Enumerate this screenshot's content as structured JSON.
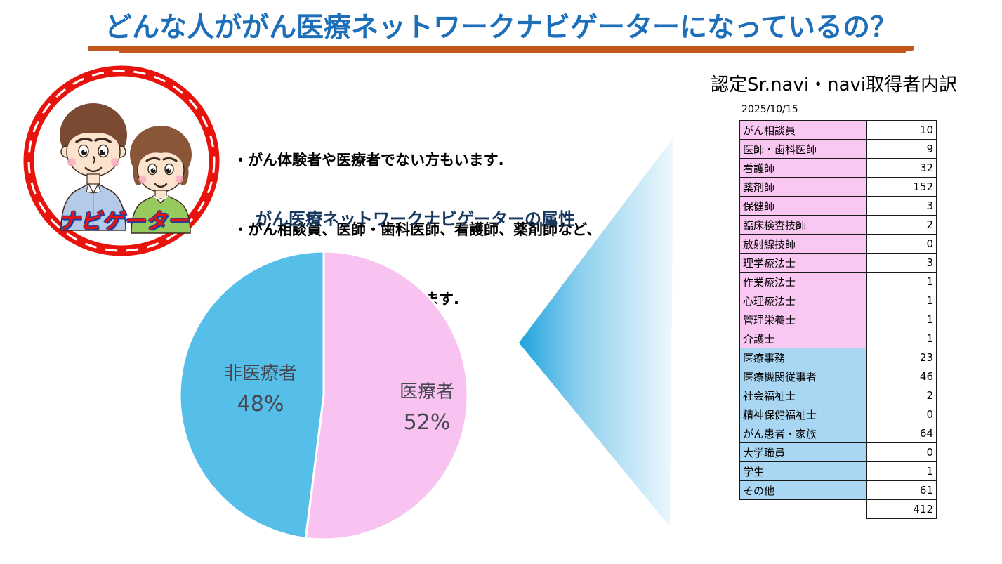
{
  "header": {
    "title": "どんな人ががん医療ネットワークナビゲーターになっているの？",
    "accent_rule_color": "#c2561c",
    "title_color": "#1c6fb8"
  },
  "badge": {
    "label": "ナビゲーター",
    "ring_color": "#e8130c"
  },
  "intro": {
    "lines": [
      "・がん体験者や医療者でない方もいます.",
      "・がん相談員、医師・歯科医師、看護師、薬剤師など、",
      "　様々な職種の方がなっています."
    ]
  },
  "chart_data": [
    {
      "type": "pie",
      "title": "がん医療ネットワークナビゲーターの属性",
      "start": "top",
      "direction": "clockwise",
      "slices": [
        {
          "label": "医療者",
          "value": 52,
          "pct_label": "52%",
          "color": "#f8c3f0"
        },
        {
          "label": "非医療者",
          "value": 48,
          "pct_label": "48%",
          "color": "#56bfe9"
        }
      ],
      "label_color": "#47474f",
      "legend_position": "inside"
    },
    {
      "type": "table",
      "title": "認定Sr.navi・navi取得者内訳",
      "date": "2025/10/15",
      "group_colors": {
        "medical": "#fac6f2",
        "nonmedical": "#a9d6f2"
      },
      "rows": [
        {
          "label": "がん相談員",
          "value": "10",
          "group": "medical"
        },
        {
          "label": "医師・歯科医師",
          "value": "9",
          "group": "medical"
        },
        {
          "label": "看護師",
          "value": "32",
          "group": "medical"
        },
        {
          "label": "薬剤師",
          "value": "152",
          "group": "medical"
        },
        {
          "label": "保健師",
          "value": "3",
          "group": "medical"
        },
        {
          "label": "臨床検査技師",
          "value": "2",
          "group": "medical"
        },
        {
          "label": "放射線技師",
          "value": "0",
          "group": "medical"
        },
        {
          "label": "理学療法士",
          "value": "3",
          "group": "medical"
        },
        {
          "label": "作業療法士",
          "value": "1",
          "group": "medical"
        },
        {
          "label": "心理療法士",
          "value": "1",
          "group": "medical"
        },
        {
          "label": "管理栄養士",
          "value": "1",
          "group": "medical"
        },
        {
          "label": "介護士",
          "value": "1",
          "group": "medical"
        },
        {
          "label": "医療事務",
          "value": "23",
          "group": "nonmedical"
        },
        {
          "label": "医療機関従事者",
          "value": "46",
          "group": "nonmedical"
        },
        {
          "label": "社会福祉士",
          "value": "2",
          "group": "nonmedical"
        },
        {
          "label": "精神保健福祉士",
          "value": "0",
          "group": "nonmedical"
        },
        {
          "label": "がん患者・家族",
          "value": "64",
          "group": "nonmedical"
        },
        {
          "label": "大学職員",
          "value": "0",
          "group": "nonmedical"
        },
        {
          "label": "学生",
          "value": "1",
          "group": "nonmedical"
        },
        {
          "label": "その他",
          "value": "61",
          "group": "nonmedical"
        }
      ],
      "total": "412"
    }
  ]
}
